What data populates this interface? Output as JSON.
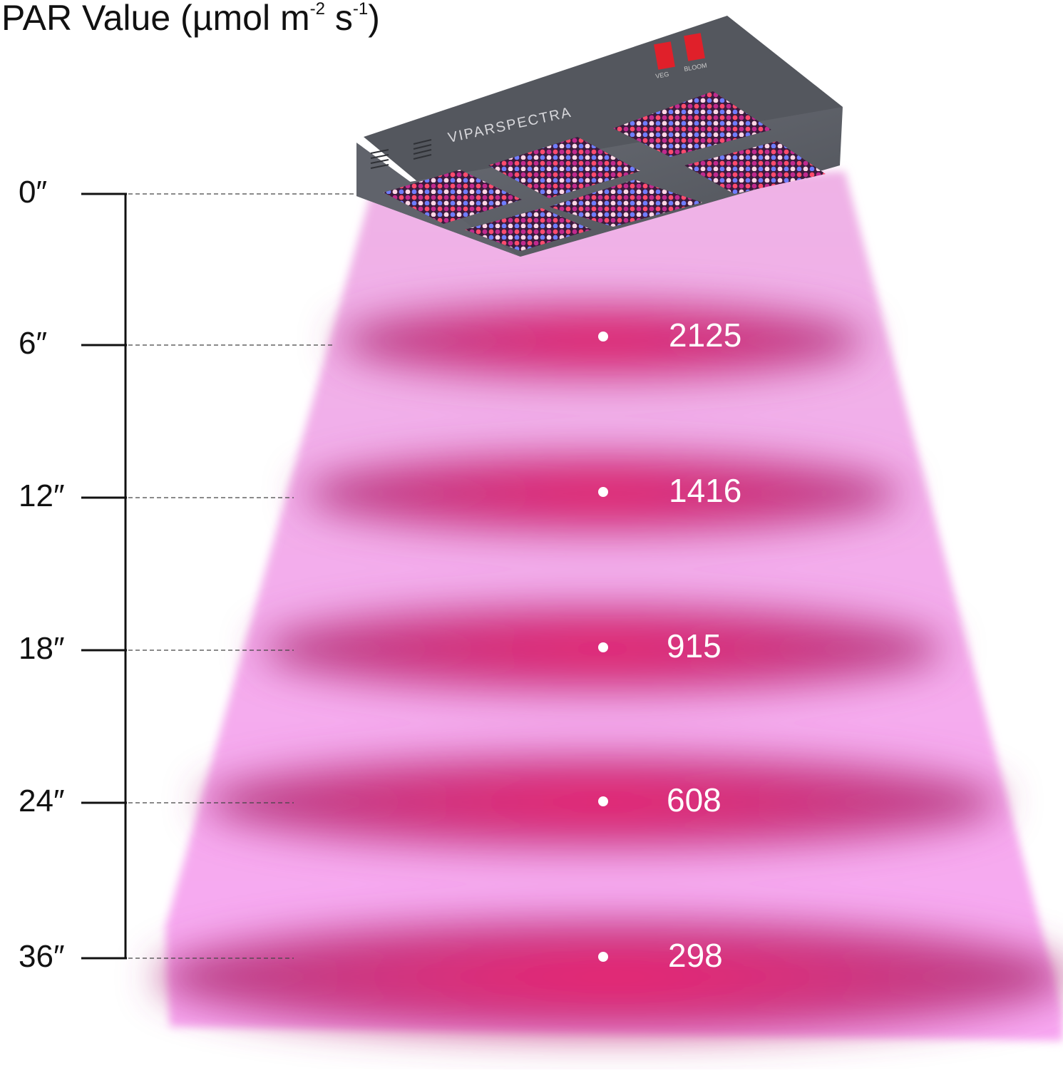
{
  "title": {
    "text": "PAR Value (µmol m",
    "exp1": "-2",
    "mid": " s",
    "exp2": "-1",
    "end": ")"
  },
  "brand": "VIPARSPECTRA",
  "switches": {
    "veg": "VEG",
    "bloom": "BLOOM"
  },
  "colors": {
    "beam": "#f2a6e8",
    "band": "#d23a8a",
    "hotspot": "#ec1e6e",
    "fixture": "#5d6068"
  },
  "chart_data": {
    "type": "diagram",
    "heights": [
      "0″",
      "6″",
      "12″",
      "18″",
      "24″",
      "36″"
    ],
    "par_values": [
      "2125",
      "1416",
      "915",
      "608",
      "298"
    ]
  }
}
